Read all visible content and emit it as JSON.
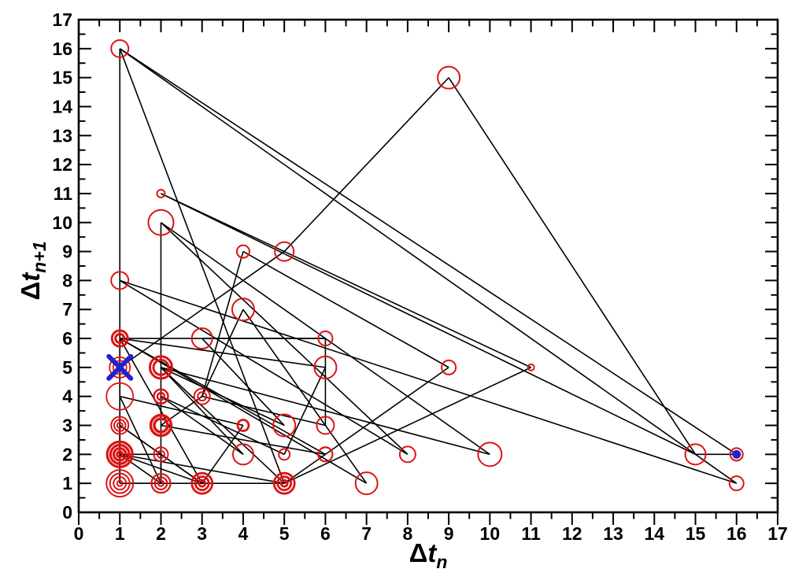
{
  "chart_data": {
    "type": "scatter",
    "subtype": "return-map",
    "title": "",
    "xlabel": {
      "delta": "Δ",
      "var": "t",
      "sub": "n"
    },
    "ylabel": {
      "delta": "Δ",
      "var": "t",
      "sub": "n+1"
    },
    "xlim": [
      0,
      17
    ],
    "ylim": [
      0,
      17
    ],
    "x_tick_labels": [
      "0",
      "1",
      "2",
      "3",
      "4",
      "5",
      "6",
      "7",
      "8",
      "9",
      "10",
      "11",
      "12",
      "13",
      "14",
      "15",
      "16",
      "17"
    ],
    "y_tick_labels": [
      "0",
      "1",
      "2",
      "3",
      "4",
      "5",
      "6",
      "7",
      "8",
      "9",
      "10",
      "11",
      "12",
      "13",
      "14",
      "15",
      "16",
      "17"
    ],
    "minor_tick_step": 0.5,
    "grid": false,
    "legend": "none",
    "colors": {
      "marker": "#dc1414",
      "line": "#000000",
      "axis": "#000000",
      "start_marker": "#2222cc",
      "end_marker": "#2222cc",
      "background": "#ffffff"
    },
    "points": [
      {
        "x": 1,
        "y": 16,
        "r": 11,
        "rings": 1,
        "w": 2
      },
      {
        "x": 9,
        "y": 15,
        "r": 14,
        "rings": 1,
        "w": 2
      },
      {
        "x": 2,
        "y": 11,
        "r": 5,
        "rings": 1,
        "w": 2
      },
      {
        "x": 2,
        "y": 10,
        "r": 16,
        "rings": 1,
        "w": 2
      },
      {
        "x": 4,
        "y": 9,
        "r": 8,
        "rings": 1,
        "w": 2
      },
      {
        "x": 5,
        "y": 9,
        "r": 12,
        "rings": 1,
        "w": 2
      },
      {
        "x": 1,
        "y": 8,
        "r": 11,
        "rings": 1,
        "w": 2
      },
      {
        "x": 4,
        "y": 7,
        "r": 14,
        "rings": 1,
        "w": 2
      },
      {
        "x": 1,
        "y": 6,
        "r": 10,
        "rings": 2,
        "w": 3
      },
      {
        "x": 3,
        "y": 6,
        "r": 13,
        "rings": 1,
        "w": 2
      },
      {
        "x": 6,
        "y": 6,
        "r": 9,
        "rings": 1,
        "w": 2
      },
      {
        "x": 1,
        "y": 5,
        "r": 13,
        "rings": 3,
        "w": 1.8
      },
      {
        "x": 2,
        "y": 5,
        "r": 14,
        "rings": 2,
        "w": 3
      },
      {
        "x": 6,
        "y": 5,
        "r": 14,
        "rings": 1,
        "w": 2
      },
      {
        "x": 9,
        "y": 5,
        "r": 9,
        "rings": 1,
        "w": 2
      },
      {
        "x": 11,
        "y": 5,
        "r": 4,
        "rings": 1,
        "w": 2
      },
      {
        "x": 1,
        "y": 4,
        "r": 17,
        "rings": 1,
        "w": 1.8
      },
      {
        "x": 2,
        "y": 4,
        "r": 9,
        "rings": 2,
        "w": 2.5
      },
      {
        "x": 3,
        "y": 4,
        "r": 10,
        "rings": 2,
        "w": 2
      },
      {
        "x": 1,
        "y": 3,
        "r": 11,
        "rings": 3,
        "w": 2
      },
      {
        "x": 2,
        "y": 3,
        "r": 13,
        "rings": 2,
        "w": 3.5
      },
      {
        "x": 4,
        "y": 3,
        "r": 7,
        "rings": 1,
        "w": 2.8
      },
      {
        "x": 5,
        "y": 3,
        "r": 14,
        "rings": 1,
        "w": 2
      },
      {
        "x": 6,
        "y": 3,
        "r": 11,
        "rings": 1,
        "w": 2
      },
      {
        "x": 1,
        "y": 2,
        "r": 16,
        "rings": 4,
        "w": 3.2
      },
      {
        "x": 2,
        "y": 2,
        "r": 9,
        "rings": 2,
        "w": 2
      },
      {
        "x": 4,
        "y": 2,
        "r": 13,
        "rings": 1,
        "w": 2
      },
      {
        "x": 5,
        "y": 2,
        "r": 7,
        "rings": 1,
        "w": 2
      },
      {
        "x": 6,
        "y": 2,
        "r": 9,
        "rings": 1,
        "w": 2.2
      },
      {
        "x": 8,
        "y": 2,
        "r": 10,
        "rings": 1,
        "w": 2
      },
      {
        "x": 10,
        "y": 2,
        "r": 15,
        "rings": 1,
        "w": 2
      },
      {
        "x": 15,
        "y": 2,
        "r": 13,
        "rings": 1,
        "w": 2
      },
      {
        "x": 16,
        "y": 2,
        "r": 8,
        "rings": 1,
        "w": 2
      },
      {
        "x": 1,
        "y": 1,
        "r": 17,
        "rings": 4,
        "w": 2
      },
      {
        "x": 2,
        "y": 1,
        "r": 12,
        "rings": 3,
        "w": 2.2
      },
      {
        "x": 3,
        "y": 1,
        "r": 13,
        "rings": 3,
        "w": 2.8
      },
      {
        "x": 5,
        "y": 1,
        "r": 13,
        "rings": 3,
        "w": 2.8
      },
      {
        "x": 7,
        "y": 1,
        "r": 14,
        "rings": 1,
        "w": 2
      },
      {
        "x": 16,
        "y": 1,
        "r": 9,
        "rings": 1,
        "w": 2
      }
    ],
    "segments": [
      [
        1,
        5,
        5,
        9
      ],
      [
        5,
        9,
        9,
        15
      ],
      [
        9,
        15,
        15,
        2
      ],
      [
        15,
        2,
        2,
        11
      ],
      [
        2,
        11,
        11,
        5
      ],
      [
        11,
        5,
        5,
        1
      ],
      [
        5,
        1,
        1,
        16
      ],
      [
        1,
        16,
        16,
        1
      ],
      [
        16,
        1,
        1,
        8
      ],
      [
        1,
        8,
        8,
        2
      ],
      [
        8,
        2,
        2,
        10
      ],
      [
        2,
        10,
        10,
        2
      ],
      [
        10,
        2,
        2,
        5
      ],
      [
        2,
        5,
        5,
        3
      ],
      [
        5,
        3,
        3,
        6
      ],
      [
        3,
        6,
        6,
        6
      ],
      [
        6,
        6,
        6,
        3
      ],
      [
        6,
        3,
        3,
        4
      ],
      [
        3,
        4,
        4,
        7
      ],
      [
        4,
        7,
        7,
        1
      ],
      [
        7,
        1,
        1,
        6
      ],
      [
        1,
        6,
        6,
        2
      ],
      [
        6,
        2,
        2,
        3
      ],
      [
        2,
        3,
        3,
        4
      ],
      [
        3,
        4,
        4,
        9
      ],
      [
        4,
        9,
        9,
        5
      ],
      [
        9,
        5,
        5,
        1
      ],
      [
        5,
        1,
        1,
        2
      ],
      [
        1,
        2,
        2,
        2
      ],
      [
        2,
        2,
        2,
        1
      ],
      [
        2,
        1,
        1,
        4
      ],
      [
        1,
        4,
        4,
        3
      ],
      [
        4,
        3,
        3,
        1
      ],
      [
        3,
        1,
        1,
        3
      ],
      [
        1,
        3,
        3,
        1
      ],
      [
        3,
        1,
        1,
        6
      ],
      [
        1,
        6,
        6,
        5
      ],
      [
        6,
        5,
        5,
        2
      ],
      [
        5,
        2,
        2,
        4
      ],
      [
        2,
        4,
        4,
        2
      ],
      [
        4,
        2,
        2,
        5
      ],
      [
        2,
        5,
        5,
        1
      ],
      [
        5,
        1,
        1,
        1
      ],
      [
        1,
        1,
        1,
        2
      ],
      [
        1,
        2,
        2,
        1
      ],
      [
        2,
        1,
        1,
        1
      ],
      [
        1,
        1,
        1,
        3
      ],
      [
        3,
        1,
        1,
        2
      ],
      [
        1,
        1,
        1,
        16
      ],
      [
        1,
        16,
        16,
        2
      ],
      [
        15,
        2,
        16,
        2
      ],
      [
        2,
        10,
        2,
        1
      ],
      [
        1,
        6,
        1,
        1
      ],
      [
        1,
        6,
        6,
        6
      ]
    ],
    "start_marker": {
      "type": "x",
      "x": 1,
      "y": 5,
      "half": 14,
      "stroke": 6
    },
    "end_marker": {
      "type": "filled-dot",
      "x": 16,
      "y": 2,
      "r": 5.5
    }
  }
}
